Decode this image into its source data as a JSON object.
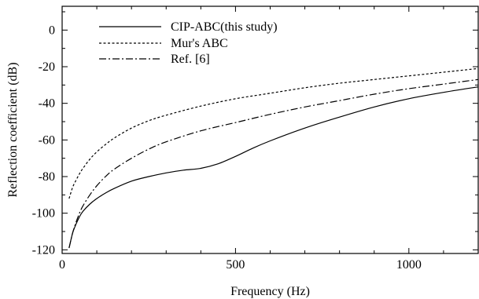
{
  "chart_data": {
    "type": "line",
    "title": "",
    "xlabel": "Frequency (Hz)",
    "ylabel": "Reflection coefficient (dB)",
    "xlim": [
      0,
      1200
    ],
    "ylim": [
      -122,
      13
    ],
    "grid": false,
    "legend_placement": "top-left",
    "x_ticks": [
      0,
      500,
      1000
    ],
    "x_tick_labels": [
      "0",
      "500",
      "1000"
    ],
    "y_ticks": [
      0,
      -20,
      -40,
      -60,
      -80,
      -100,
      -120
    ],
    "y_tick_labels": [
      "0",
      "-20",
      "-40",
      "-60",
      "-80",
      "-100",
      "-120"
    ],
    "series": [
      {
        "name": "CIP-ABC(this study)",
        "style": "solid",
        "color": "#000000",
        "x": [
          20,
          30,
          40,
          50,
          60,
          80,
          100,
          125,
          150,
          200,
          250,
          300,
          350,
          400,
          450,
          500,
          550,
          600,
          700,
          800,
          900,
          1000,
          1100,
          1200
        ],
        "y": [
          -119,
          -111,
          -106,
          -102,
          -99,
          -95,
          -92,
          -89,
          -86.5,
          -82.5,
          -80,
          -78,
          -76.5,
          -75.5,
          -73,
          -69,
          -64.5,
          -60.5,
          -53.5,
          -47.5,
          -42,
          -37.5,
          -34,
          -31
        ]
      },
      {
        "name": "Mur's ABC",
        "style": "dashed",
        "color": "#000000",
        "x": [
          20,
          30,
          40,
          50,
          60,
          80,
          100,
          125,
          150,
          200,
          250,
          300,
          400,
          500,
          600,
          700,
          800,
          900,
          1000,
          1100,
          1200
        ],
        "y": [
          -92,
          -86,
          -82,
          -78.5,
          -75.5,
          -70.5,
          -66.5,
          -62.5,
          -59,
          -53.5,
          -49.5,
          -46.5,
          -41.5,
          -37.5,
          -34.5,
          -31.5,
          -29,
          -27,
          -25,
          -23,
          -21
        ]
      },
      {
        "name": "Ref. [6]",
        "style": "dashdot",
        "color": "#000000",
        "x": [
          20,
          30,
          40,
          50,
          60,
          80,
          100,
          125,
          150,
          200,
          250,
          300,
          400,
          500,
          600,
          700,
          800,
          900,
          1000,
          1100,
          1200
        ],
        "y": [
          -119,
          -111,
          -105,
          -100,
          -96,
          -90,
          -85,
          -80,
          -76,
          -70,
          -65,
          -61,
          -55,
          -50.5,
          -46,
          -42,
          -38.5,
          -35,
          -32,
          -29.5,
          -27
        ]
      }
    ]
  }
}
